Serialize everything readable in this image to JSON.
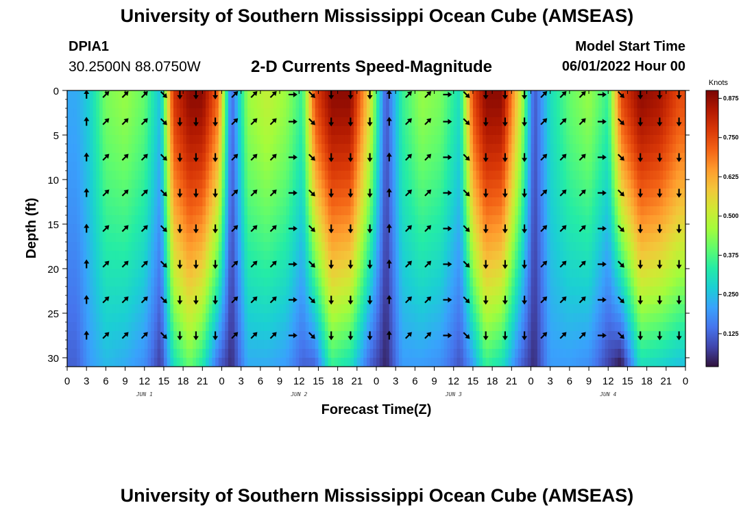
{
  "header": {
    "title": "University of Southern Mississippi Ocean Cube (AMSEAS)",
    "station_id": "DPIA1",
    "coordinates": "30.2500N  88.0750W",
    "subtitle": "2-D Currents Speed-Magnitude",
    "model_start_label": "Model Start Time",
    "model_start_value": "06/01/2022 Hour 00"
  },
  "footer": {
    "title": "University of Southern Mississippi Ocean Cube (AMSEAS)"
  },
  "chart_data": {
    "type": "heatmap",
    "title": "2-D Currents Speed-Magnitude",
    "xlabel": "Forecast Time(Z)",
    "ylabel": "Depth (ft)",
    "x_range_hours": [
      0,
      96
    ],
    "ylim": [
      0,
      31
    ],
    "y_inverted": true,
    "x_tick_labels": [
      "0",
      "3",
      "6",
      "9",
      "12",
      "15",
      "18",
      "21",
      "0",
      "3",
      "6",
      "9",
      "12",
      "15",
      "18",
      "21",
      "0",
      "3",
      "6",
      "9",
      "12",
      "15",
      "18",
      "21",
      "0",
      "3",
      "6",
      "9",
      "12",
      "15",
      "18",
      "21",
      "0"
    ],
    "y_ticks": [
      0,
      5,
      10,
      15,
      20,
      25,
      30
    ],
    "y_tick_labels": [
      "0",
      "5",
      "10",
      "15",
      "20",
      "25",
      "30"
    ],
    "day_labels": [
      {
        "label": "JUN 1",
        "hour": 12
      },
      {
        "label": "JUN 2",
        "hour": 36
      },
      {
        "label": "JUN 3",
        "hour": 60
      },
      {
        "label": "JUN 4",
        "hour": 84
      }
    ],
    "colorbar": {
      "title": "Knots",
      "ticks": [
        0.125,
        0.25,
        0.375,
        0.5,
        0.625,
        0.75,
        0.875
      ],
      "tick_labels": [
        "0.125",
        "0.250",
        "0.375",
        "0.500",
        "0.625",
        "0.750",
        "0.875"
      ],
      "range": [
        0.02,
        0.9
      ],
      "colors": [
        "#30123b",
        "#4145ab",
        "#4675ed",
        "#39a2fc",
        "#1bcfd4",
        "#24eca6",
        "#61fc6c",
        "#a4fc3b",
        "#d1e834",
        "#f3c63a",
        "#fe9b2d",
        "#f36315",
        "#d93807",
        "#b11901",
        "#7a0403"
      ]
    },
    "speed_bands": [
      {
        "hour": 1.5,
        "surface": 0.22,
        "bottom": 0.12
      },
      {
        "hour": 3.5,
        "surface": 0.28,
        "bottom": 0.2
      },
      {
        "hour": 6,
        "surface": 0.42,
        "bottom": 0.24
      },
      {
        "hour": 9,
        "surface": 0.45,
        "bottom": 0.22
      },
      {
        "hour": 12,
        "surface": 0.4,
        "bottom": 0.18
      },
      {
        "hour": 14.5,
        "surface": 0.25,
        "bottom": 0.07
      },
      {
        "hour": 16.5,
        "surface": 0.78,
        "bottom": 0.3
      },
      {
        "hour": 19,
        "surface": 0.88,
        "bottom": 0.4
      },
      {
        "hour": 21,
        "surface": 0.88,
        "bottom": 0.32
      },
      {
        "hour": 23.5,
        "surface": 0.7,
        "bottom": 0.12
      },
      {
        "hour": 25.5,
        "surface": 0.12,
        "bottom": 0.05
      },
      {
        "hour": 28,
        "surface": 0.45,
        "bottom": 0.22
      },
      {
        "hour": 31,
        "surface": 0.5,
        "bottom": 0.22
      },
      {
        "hour": 34,
        "surface": 0.45,
        "bottom": 0.2
      },
      {
        "hour": 36.5,
        "surface": 0.35,
        "bottom": 0.12
      },
      {
        "hour": 38.5,
        "surface": 0.75,
        "bottom": 0.12
      },
      {
        "hour": 41,
        "surface": 0.88,
        "bottom": 0.35
      },
      {
        "hour": 44,
        "surface": 0.88,
        "bottom": 0.3
      },
      {
        "hour": 47,
        "surface": 0.55,
        "bottom": 0.12
      },
      {
        "hour": 49.5,
        "surface": 0.1,
        "bottom": 0.04
      },
      {
        "hour": 52,
        "surface": 0.35,
        "bottom": 0.2
      },
      {
        "hour": 55,
        "surface": 0.45,
        "bottom": 0.2
      },
      {
        "hour": 58,
        "surface": 0.42,
        "bottom": 0.18
      },
      {
        "hour": 61,
        "surface": 0.3,
        "bottom": 0.1
      },
      {
        "hour": 63,
        "surface": 0.75,
        "bottom": 0.2
      },
      {
        "hour": 65,
        "surface": 0.88,
        "bottom": 0.35
      },
      {
        "hour": 67.5,
        "surface": 0.88,
        "bottom": 0.3
      },
      {
        "hour": 70.5,
        "surface": 0.5,
        "bottom": 0.12
      },
      {
        "hour": 72.5,
        "surface": 0.1,
        "bottom": 0.05
      },
      {
        "hour": 75,
        "surface": 0.3,
        "bottom": 0.2
      },
      {
        "hour": 78,
        "surface": 0.4,
        "bottom": 0.2
      },
      {
        "hour": 81,
        "surface": 0.45,
        "bottom": 0.18
      },
      {
        "hour": 84,
        "surface": 0.35,
        "bottom": 0.08
      },
      {
        "hour": 86,
        "surface": 0.75,
        "bottom": 0.02
      },
      {
        "hour": 89,
        "surface": 0.88,
        "bottom": 0.3
      },
      {
        "hour": 92,
        "surface": 0.85,
        "bottom": 0.28
      },
      {
        "hour": 95,
        "surface": 0.75,
        "bottom": 0.25
      }
    ],
    "arrow_depths_ft": [
      0,
      3.5,
      7.5,
      11.5,
      15.5,
      19.5,
      23.5,
      27.5
    ],
    "arrow_columns": [
      {
        "hour": 3,
        "dir": "N"
      },
      {
        "hour": 6,
        "dir": "NE"
      },
      {
        "hour": 9,
        "dir": "NE"
      },
      {
        "hour": 12,
        "dir": "NE"
      },
      {
        "hour": 15,
        "dir": "SE"
      },
      {
        "hour": 17.5,
        "dir": "S"
      },
      {
        "hour": 20,
        "dir": "S"
      },
      {
        "hour": 23,
        "dir": "S"
      },
      {
        "hour": 26,
        "dir": "NE"
      },
      {
        "hour": 29,
        "dir": "NE"
      },
      {
        "hour": 32,
        "dir": "NE"
      },
      {
        "hour": 35,
        "dir": "E"
      },
      {
        "hour": 38,
        "dir": "SE"
      },
      {
        "hour": 41,
        "dir": "S"
      },
      {
        "hour": 44,
        "dir": "S"
      },
      {
        "hour": 47,
        "dir": "S"
      },
      {
        "hour": 50,
        "dir": "N"
      },
      {
        "hour": 53,
        "dir": "NE"
      },
      {
        "hour": 56,
        "dir": "NE"
      },
      {
        "hour": 59,
        "dir": "E"
      },
      {
        "hour": 62,
        "dir": "SE"
      },
      {
        "hour": 65,
        "dir": "S"
      },
      {
        "hour": 68,
        "dir": "S"
      },
      {
        "hour": 71,
        "dir": "S"
      },
      {
        "hour": 74,
        "dir": "NE"
      },
      {
        "hour": 77,
        "dir": "NE"
      },
      {
        "hour": 80,
        "dir": "NE"
      },
      {
        "hour": 83,
        "dir": "E"
      },
      {
        "hour": 86,
        "dir": "SE"
      },
      {
        "hour": 89,
        "dir": "S"
      },
      {
        "hour": 92,
        "dir": "S"
      },
      {
        "hour": 95,
        "dir": "S"
      }
    ]
  }
}
